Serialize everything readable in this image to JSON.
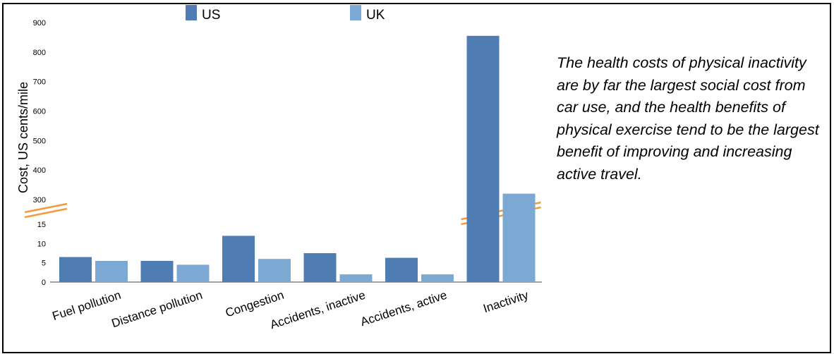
{
  "caption_fragment": "",
  "annotation": "The health costs of physical inactivity are by far the largest social cost from car use, and the health benefits of physical exercise tend to be the largest benefit of improving and increasing active travel.",
  "colors": {
    "us": "#4f7db3",
    "uk": "#7ca9d3",
    "break_mark": "#f39a3c",
    "axis": "#808080"
  },
  "chart_data": {
    "type": "bar",
    "title": "",
    "xlabel": "",
    "ylabel": "Cost, US cents/mile",
    "categories": [
      "Fuel pollution",
      "Distance pollution",
      "Congestion",
      "Accidents, inactive",
      "Accidents, active",
      "Inactivity"
    ],
    "series": [
      {
        "name": "US",
        "values": [
          6.5,
          5.5,
          12,
          7.5,
          6.3,
          855
        ]
      },
      {
        "name": "UK",
        "values": [
          5.5,
          4.5,
          6,
          2,
          2,
          320
        ]
      }
    ],
    "axis_break": {
      "lower_range": [
        0,
        15
      ],
      "upper_range": [
        300,
        900
      ]
    },
    "lower_ticks": [
      0,
      5,
      10,
      15
    ],
    "upper_ticks": [
      300,
      400,
      500,
      600,
      700,
      800,
      900
    ],
    "legend_position": "top",
    "grid": false
  }
}
